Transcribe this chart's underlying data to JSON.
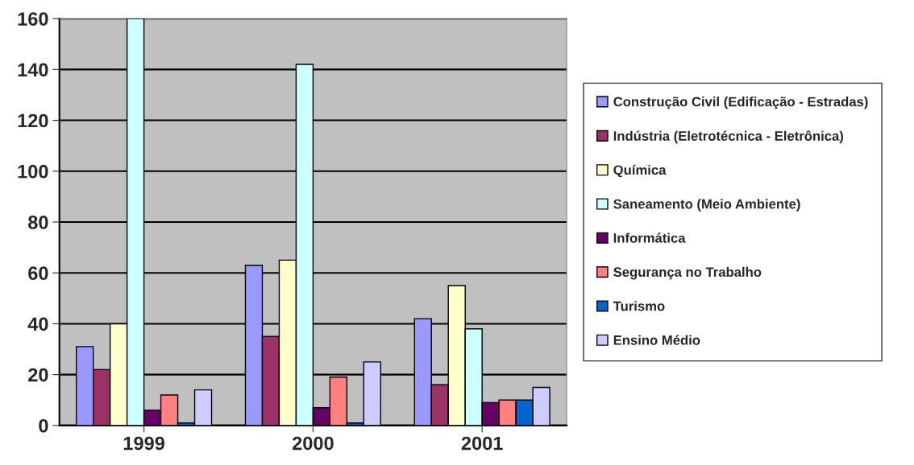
{
  "chart_data": {
    "type": "bar",
    "categories": [
      "1999",
      "2000",
      "2001"
    ],
    "series": [
      {
        "name": "Construção Civil (Edificação - Estradas)",
        "color": "#9999ff",
        "values": [
          31,
          63,
          42
        ]
      },
      {
        "name": "Indústria (Eletrotécnica - Eletrônica)",
        "color": "#993366",
        "values": [
          22,
          35,
          16
        ]
      },
      {
        "name": "Química",
        "color": "#ffffcc",
        "values": [
          40,
          65,
          55
        ]
      },
      {
        "name": "Saneamento (Meio Ambiente)",
        "color": "#ccffff",
        "values": [
          160,
          142,
          38
        ]
      },
      {
        "name": "Informática",
        "color": "#660066",
        "values": [
          6,
          7,
          9
        ]
      },
      {
        "name": "Segurança no Trabalho",
        "color": "#ff8080",
        "values": [
          12,
          19,
          10
        ]
      },
      {
        "name": "Turismo",
        "color": "#0066cc",
        "values": [
          1,
          1,
          10
        ]
      },
      {
        "name": "Ensino Médio",
        "color": "#ccccff",
        "values": [
          14,
          25,
          15
        ]
      }
    ],
    "ylim": [
      0,
      160
    ],
    "yticks": [
      0,
      20,
      40,
      60,
      80,
      100,
      120,
      140,
      160
    ],
    "grid": "y",
    "legend": "right"
  }
}
